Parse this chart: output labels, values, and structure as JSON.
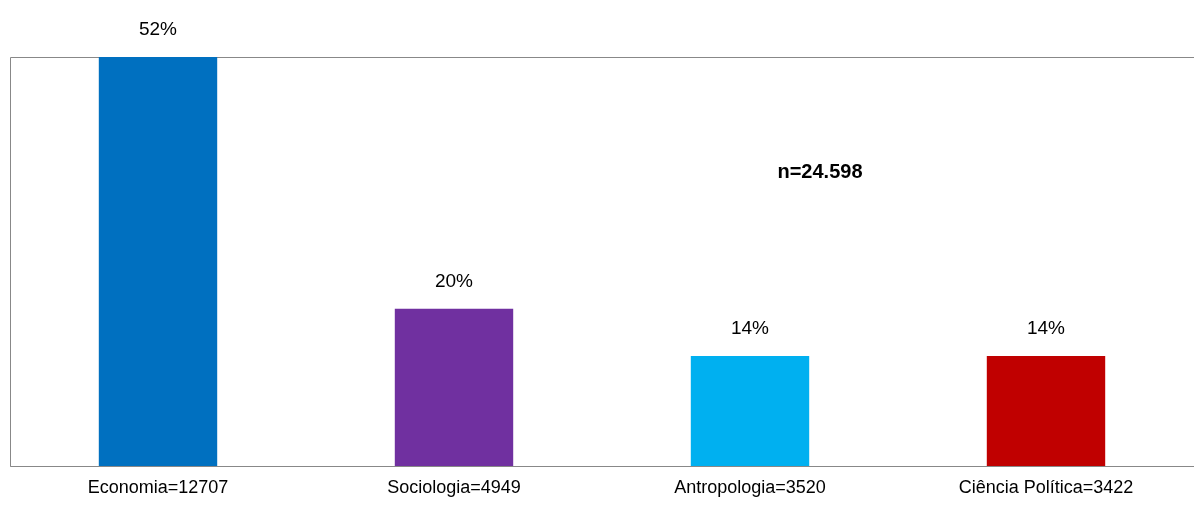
{
  "chart_data": {
    "type": "bar",
    "categories": [
      "Economia=12707",
      "Sociologia=4949",
      "Antropologia=3520",
      "Ciência Política=3422"
    ],
    "values": [
      52,
      20,
      14,
      14
    ],
    "colors": [
      "#0070c0",
      "#7030a0",
      "#00b0f0",
      "#c00000"
    ],
    "value_labels": [
      "52%",
      "20%",
      "14%",
      "14%"
    ],
    "annotations": [
      "n=24.598"
    ]
  }
}
